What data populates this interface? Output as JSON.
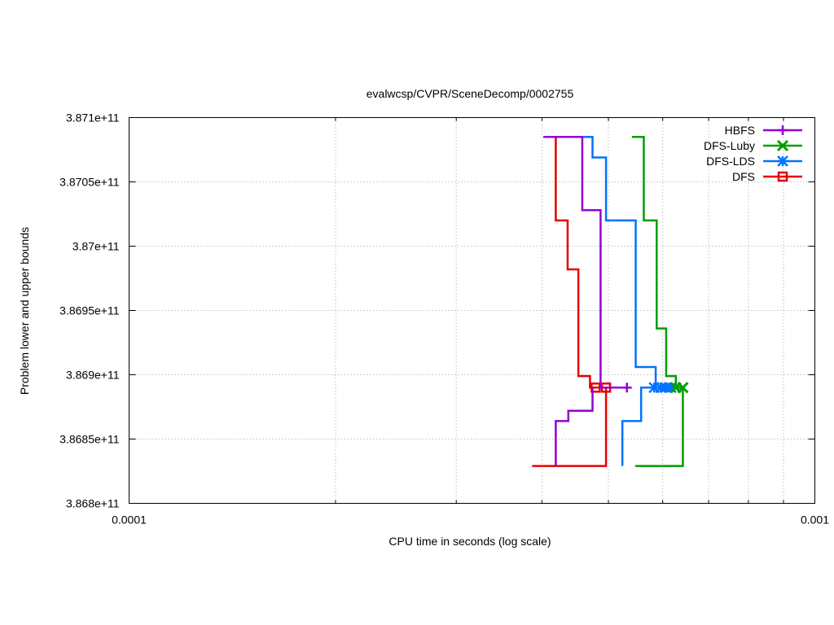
{
  "chart_data": {
    "type": "line",
    "title": "evalwcsp/CVPR/SceneDecomp/0002755",
    "xlabel": "CPU time in seconds (log scale)",
    "ylabel": "Problem lower and upper bounds",
    "x_scale": "log",
    "xlim": [
      0.0001,
      0.001
    ],
    "ylim": [
      386800000000,
      387100000000
    ],
    "x_ticks": [
      {
        "value": 0.0001,
        "label": "0.0001"
      },
      {
        "value": 0.001,
        "label": "0.001"
      }
    ],
    "y_ticks": [
      {
        "value": 386800000000,
        "label": "3.868e+11"
      },
      {
        "value": 386850000000,
        "label": "3.8685e+11"
      },
      {
        "value": 386900000000,
        "label": "3.869e+11"
      },
      {
        "value": 386950000000,
        "label": "3.8695e+11"
      },
      {
        "value": 387000000000,
        "label": "3.87e+11"
      },
      {
        "value": 387050000000,
        "label": "3.8705e+11"
      },
      {
        "value": 387100000000,
        "label": "3.871e+11"
      }
    ],
    "grid": true,
    "legend_position": "top-right",
    "series": [
      {
        "name": "HBFS",
        "color": "#9400d3",
        "marker": "plus",
        "upper": [
          [
            0.000402,
            387085000000
          ],
          [
            0.000458,
            387085000000
          ],
          [
            0.000458,
            387028000000
          ],
          [
            0.000487,
            387028000000
          ],
          [
            0.000487,
            386890000000
          ],
          [
            0.000532,
            386890000000
          ]
        ],
        "lower": [
          [
            0.000419,
            386829000000
          ],
          [
            0.000419,
            386864000000
          ],
          [
            0.000437,
            386864000000
          ],
          [
            0.000437,
            386872000000
          ],
          [
            0.000474,
            386872000000
          ],
          [
            0.000474,
            386890000000
          ]
        ],
        "markers": [
          [
            0.000532,
            386890000000
          ]
        ]
      },
      {
        "name": "DFS-Luby",
        "color": "#009e00",
        "marker": "x",
        "upper": [
          [
            0.000541,
            387085000000
          ],
          [
            0.000563,
            387085000000
          ],
          [
            0.000563,
            387020000000
          ],
          [
            0.000588,
            387020000000
          ],
          [
            0.000588,
            386936000000
          ],
          [
            0.000607,
            386936000000
          ],
          [
            0.000607,
            386899000000
          ],
          [
            0.000627,
            386899000000
          ],
          [
            0.000627,
            386890000000
          ],
          [
            0.000642,
            386890000000
          ]
        ],
        "lower": [
          [
            0.000547,
            386829000000
          ],
          [
            0.000642,
            386829000000
          ],
          [
            0.000642,
            386890000000
          ]
        ],
        "markers": [
          [
            0.000642,
            386890000000
          ],
          [
            0.000627,
            386890000000
          ]
        ]
      },
      {
        "name": "DFS-LDS",
        "color": "#0072ff",
        "marker": "star",
        "upper": [
          [
            0.000402,
            387085000000
          ],
          [
            0.000474,
            387085000000
          ],
          [
            0.000474,
            387069000000
          ],
          [
            0.000496,
            387069000000
          ],
          [
            0.000496,
            387020000000
          ],
          [
            0.000548,
            387020000000
          ],
          [
            0.000548,
            386906000000
          ],
          [
            0.000586,
            386906000000
          ],
          [
            0.000586,
            386890000000
          ],
          [
            0.000617,
            386890000000
          ]
        ],
        "lower": [
          [
            0.000524,
            386829000000
          ],
          [
            0.000524,
            386864000000
          ],
          [
            0.000558,
            386864000000
          ],
          [
            0.000558,
            386890000000
          ],
          [
            0.000617,
            386890000000
          ]
        ],
        "markers": [
          [
            0.000583,
            386890000000
          ],
          [
            0.000596,
            386890000000
          ],
          [
            0.000606,
            386890000000
          ],
          [
            0.000617,
            386890000000
          ]
        ]
      },
      {
        "name": "DFS",
        "color": "#e50000",
        "marker": "square",
        "upper": [
          [
            0.000402,
            387085000000
          ],
          [
            0.000419,
            387085000000
          ],
          [
            0.000419,
            387020000000
          ],
          [
            0.000436,
            387020000000
          ],
          [
            0.000436,
            386982000000
          ],
          [
            0.000452,
            386982000000
          ],
          [
            0.000452,
            386899000000
          ],
          [
            0.00047,
            386899000000
          ],
          [
            0.00047,
            386890000000
          ],
          [
            0.000496,
            386890000000
          ]
        ],
        "lower": [
          [
            0.000387,
            386829000000
          ],
          [
            0.000496,
            386829000000
          ],
          [
            0.000496,
            386890000000
          ]
        ],
        "markers": [
          [
            0.000479,
            386890000000
          ],
          [
            0.000496,
            386890000000
          ]
        ]
      }
    ]
  }
}
